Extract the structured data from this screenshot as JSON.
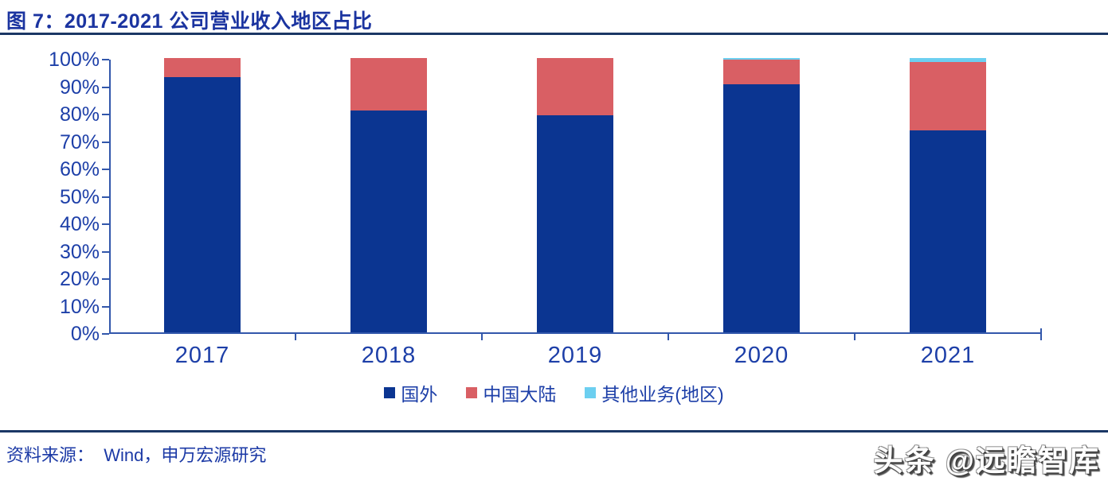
{
  "header": {
    "title": "图 7：2017-2021 公司营业收入地区占比"
  },
  "footer": {
    "source": "资料来源：  Wind，申万宏源研究",
    "watermark": "头条 @远瞻智库"
  },
  "chart_data": {
    "type": "bar",
    "stacked": true,
    "title": "图 7：2017-2021 公司营业收入地区占比",
    "categories": [
      "2017",
      "2018",
      "2019",
      "2020",
      "2021"
    ],
    "series": [
      {
        "name": "国外",
        "color": "#0b3591",
        "values": [
          93,
          81,
          79,
          90.5,
          73.5
        ]
      },
      {
        "name": "中国大陆",
        "color": "#d95f64",
        "values": [
          7,
          19,
          21,
          9,
          25
        ]
      },
      {
        "name": "其他业务(地区)",
        "color": "#6ccff0",
        "values": [
          0,
          0,
          0,
          0.5,
          1.5
        ]
      }
    ],
    "ylim": [
      0,
      100
    ],
    "ytick_labels": [
      "0%",
      "10%",
      "20%",
      "30%",
      "40%",
      "50%",
      "60%",
      "70%",
      "80%",
      "90%",
      "100%"
    ],
    "xlabel": "",
    "ylabel": "",
    "grid": false,
    "legend_position": "bottom",
    "axis_color": "#3257ab",
    "label_color": "#1d3fa8"
  }
}
